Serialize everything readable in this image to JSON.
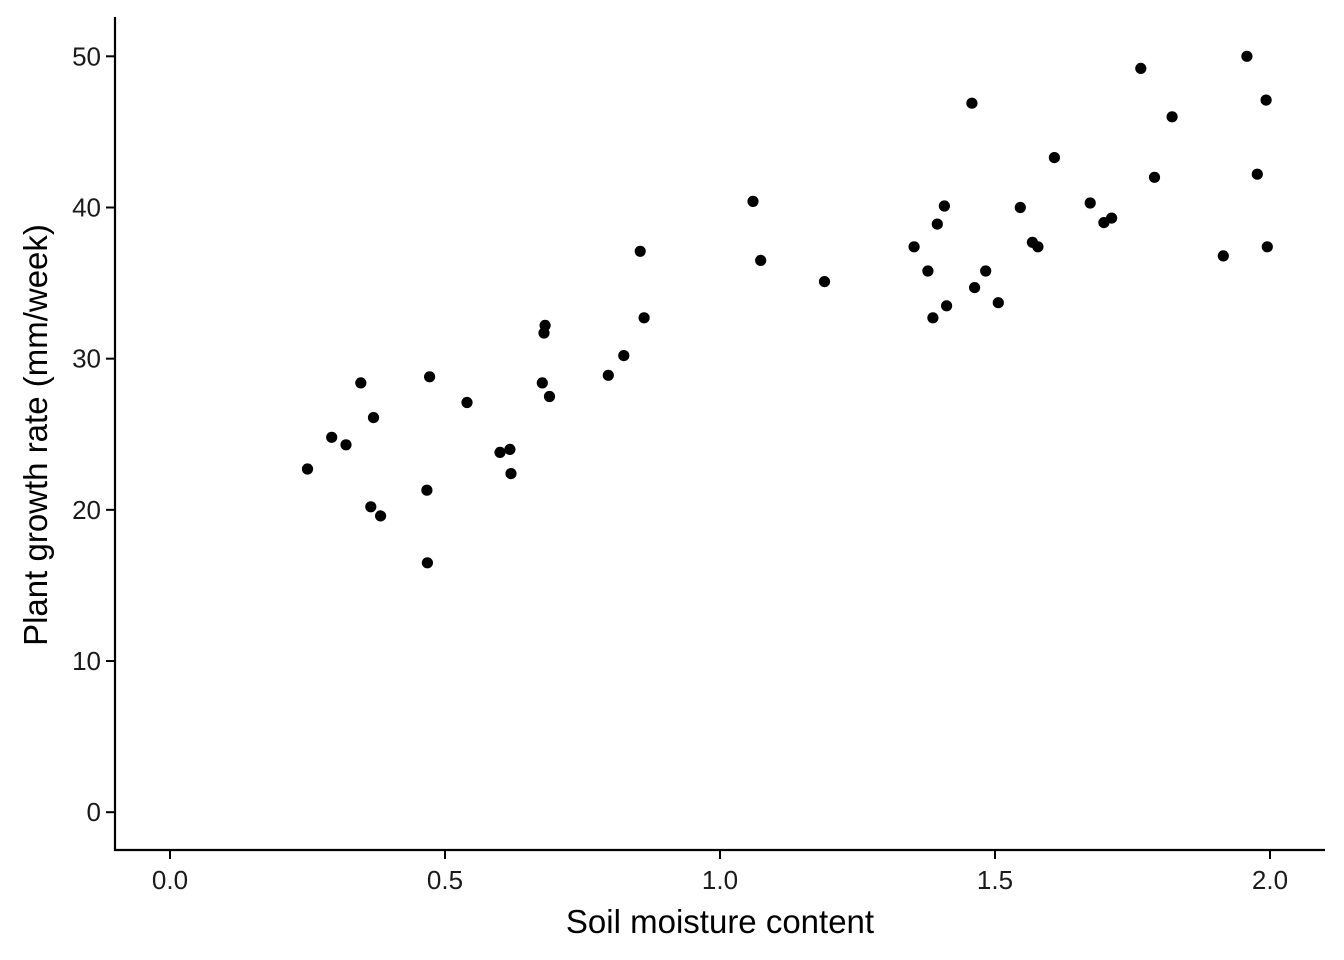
{
  "chart_data": {
    "type": "scatter",
    "xlabel": "Soil moisture content",
    "ylabel": "Plant growth rate (mm/week)",
    "xlim": [
      -0.1,
      2.1
    ],
    "ylim": [
      -2.5,
      52.6
    ],
    "x_ticks": [
      0.0,
      0.5,
      1.0,
      1.5,
      2.0
    ],
    "x_tick_labels": [
      "0.0",
      "0.5",
      "1.0",
      "1.5",
      "2.0"
    ],
    "y_ticks": [
      0,
      10,
      20,
      30,
      40,
      50
    ],
    "y_tick_labels": [
      "0",
      "10",
      "20",
      "30",
      "40",
      "50"
    ],
    "grid": false,
    "legend": "none",
    "point_color": "#000000",
    "x": [
      0.25,
      0.294,
      0.32,
      0.347,
      0.365,
      0.37,
      0.383,
      0.467,
      0.468,
      0.472,
      0.54,
      0.6,
      0.618,
      0.62,
      0.677,
      0.68,
      0.682,
      0.69,
      0.797,
      0.825,
      0.855,
      0.862,
      1.06,
      1.074,
      1.19,
      1.353,
      1.378,
      1.387,
      1.395,
      1.408,
      1.412,
      1.458,
      1.463,
      1.483,
      1.506,
      1.546,
      1.568,
      1.578,
      1.608,
      1.673,
      1.698,
      1.712,
      1.765,
      1.79,
      1.822,
      1.915,
      1.958,
      1.977,
      1.993,
      1.995
    ],
    "y": [
      22.7,
      24.8,
      24.3,
      28.4,
      20.2,
      26.1,
      19.6,
      21.3,
      16.5,
      28.8,
      27.1,
      23.8,
      24.0,
      22.4,
      28.4,
      31.7,
      32.2,
      27.5,
      28.9,
      30.2,
      37.1,
      32.7,
      40.4,
      36.5,
      35.1,
      37.4,
      35.8,
      32.7,
      38.9,
      40.1,
      33.5,
      46.9,
      34.7,
      35.8,
      33.7,
      40.0,
      37.7,
      37.4,
      43.3,
      40.3,
      39.0,
      39.3,
      49.2,
      42.0,
      46.0,
      36.8,
      50.0,
      42.2,
      47.1,
      37.4
    ]
  }
}
